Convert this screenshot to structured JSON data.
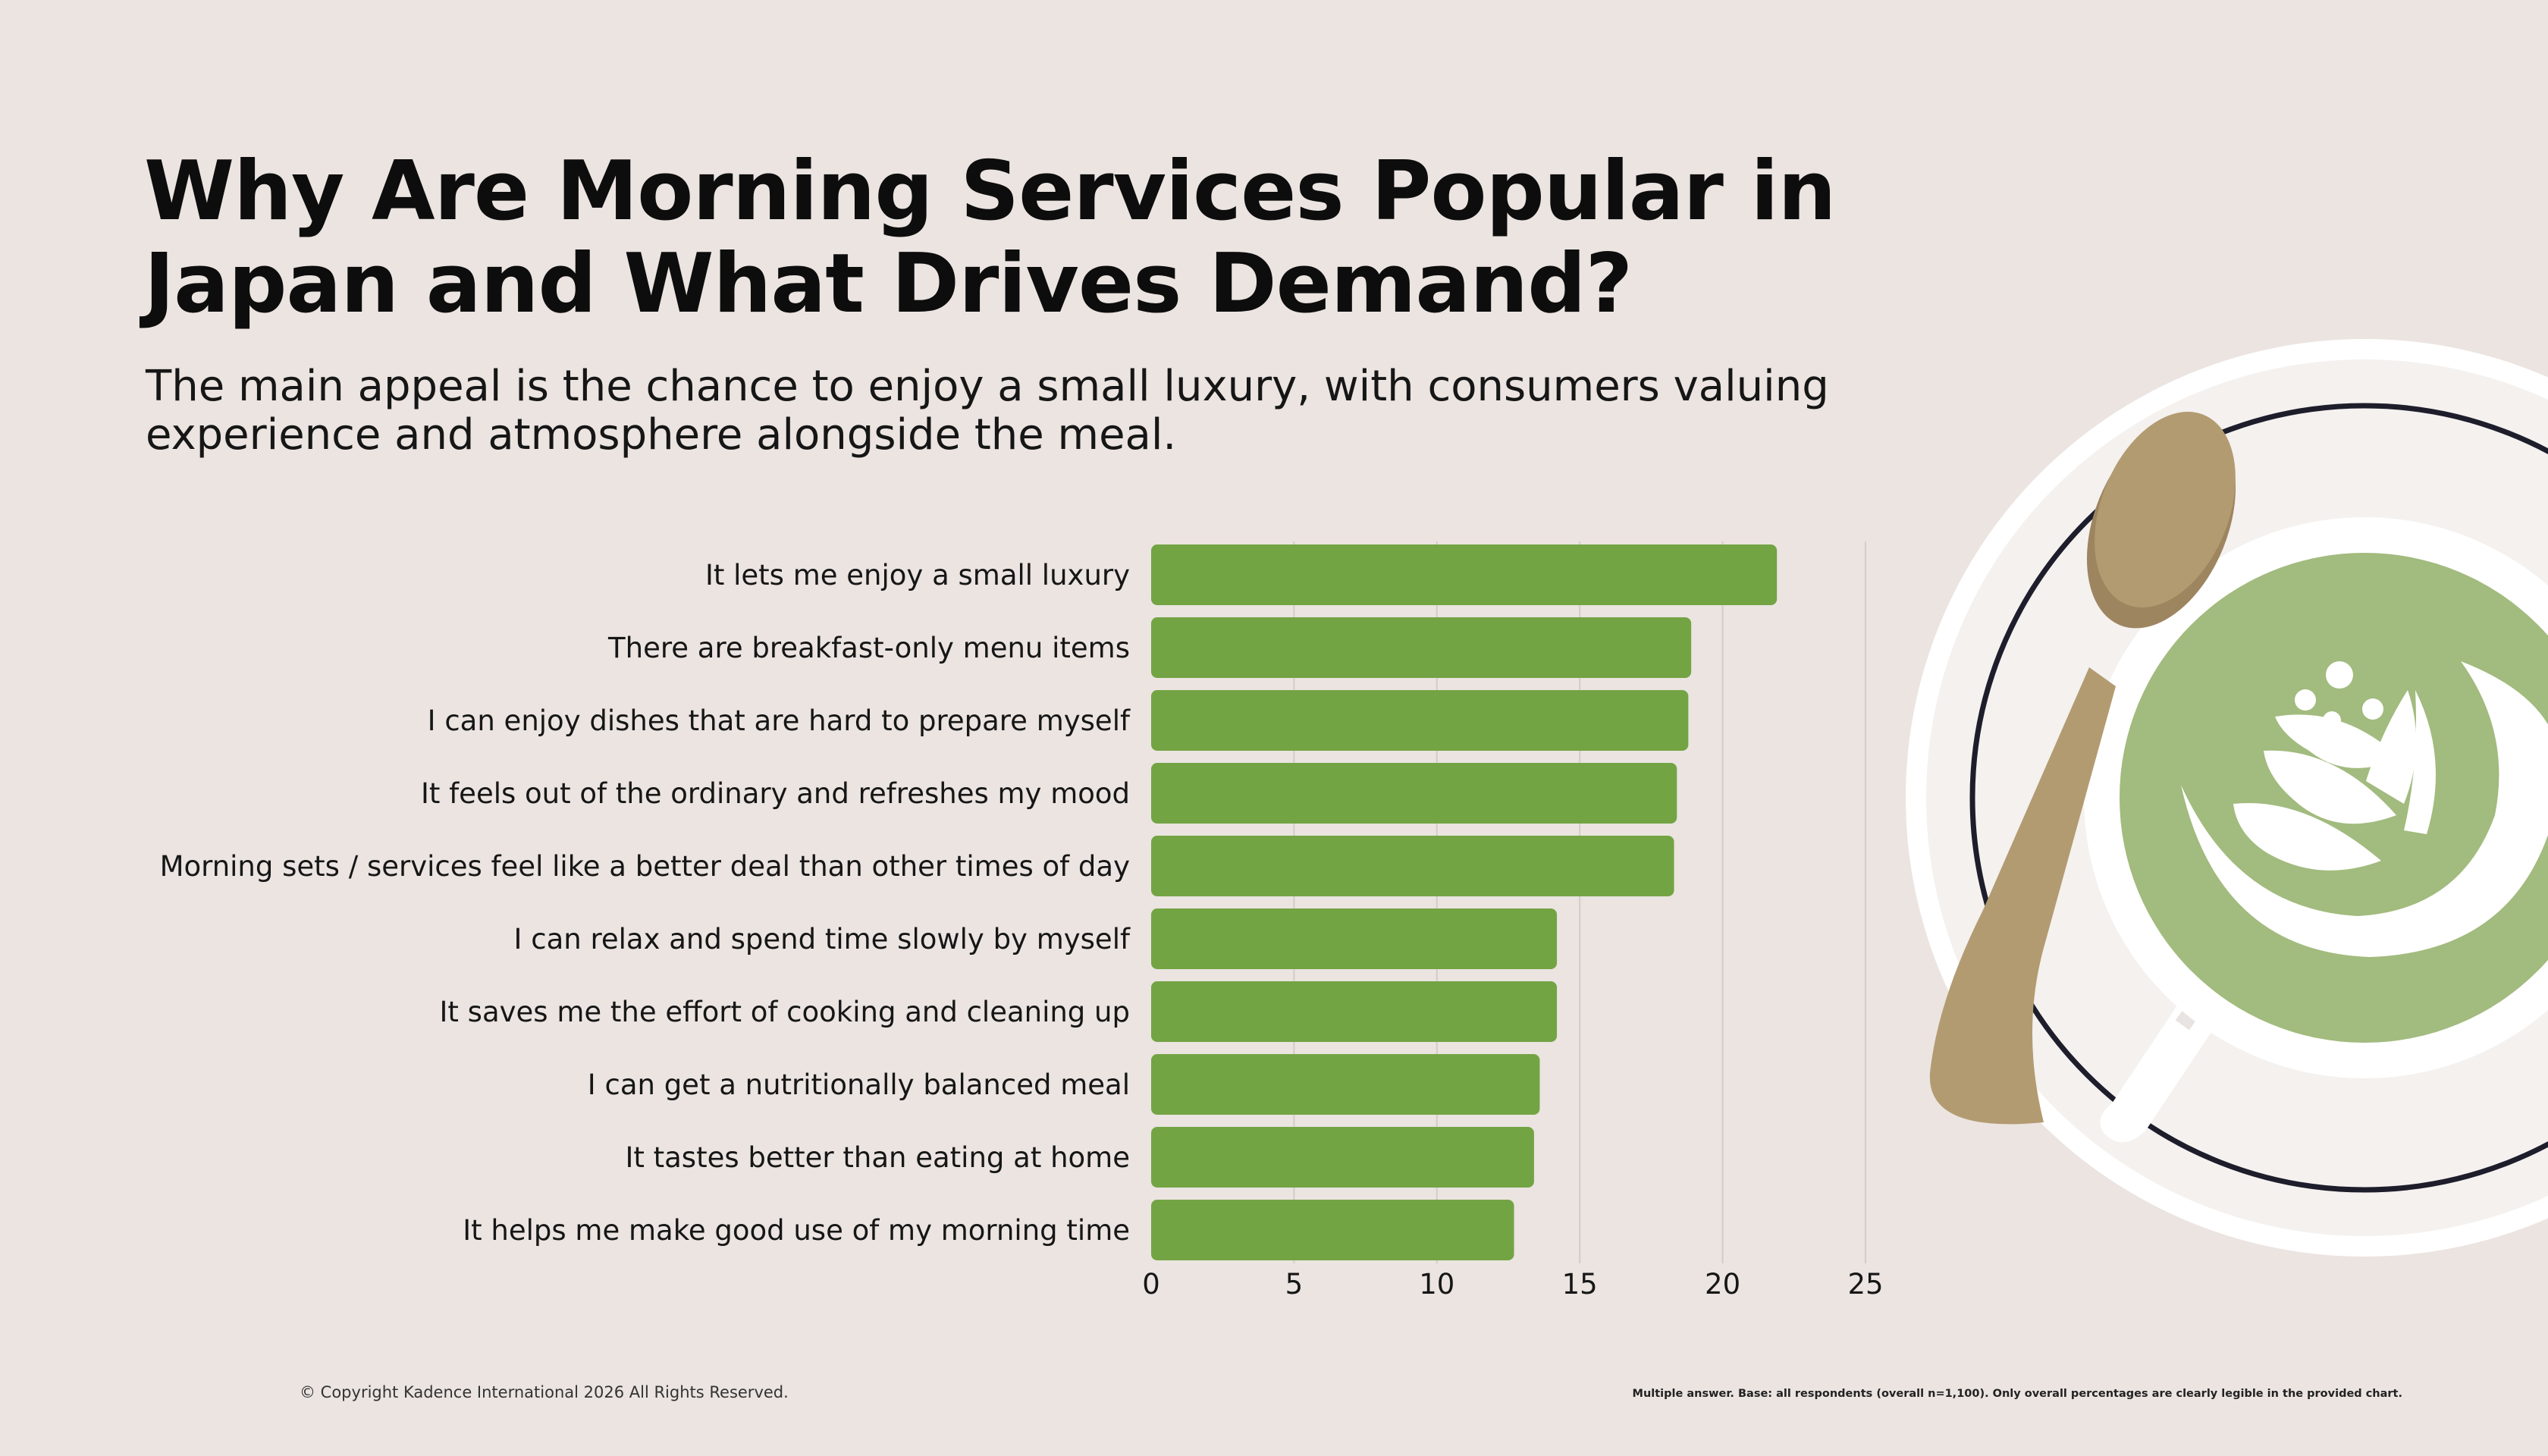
{
  "header": {
    "title": "Why Are Morning Services Popular in Japan and What Drives Demand?",
    "subtitle": "The main appeal is the chance to enjoy a small luxury, with consumers valuing experience and atmosphere alongside the meal."
  },
  "chart_data": {
    "type": "bar",
    "orientation": "horizontal",
    "categories": [
      "It lets me enjoy a small luxury",
      "There are breakfast-only menu items",
      "I can enjoy dishes that are hard to prepare myself",
      "It feels out of the ordinary and refreshes my mood",
      "Morning sets / services feel like a better deal than other times of day",
      "I can relax and spend time slowly by myself",
      "It saves me the effort of cooking and cleaning up",
      "I can get a nutritionally balanced meal",
      "It tastes better than eating at home",
      "It helps me make good use of my morning time"
    ],
    "values": [
      21.9,
      18.9,
      18.8,
      18.4,
      18.3,
      14.2,
      14.2,
      13.6,
      13.4,
      12.7
    ],
    "xlim": [
      0,
      25
    ],
    "xticks": [
      0,
      5,
      10,
      15,
      20,
      25
    ],
    "xlabel": "",
    "ylabel": "",
    "grid": true,
    "bar_color": "#73a444",
    "grid_color": "#d3ccc8"
  },
  "decoration": {
    "icon": "latte-cup-with-spoon-icon",
    "colors": {
      "saucer": "#ffffff",
      "saucer_inner": "#f4f1ef",
      "saucer_ring": "#1d1d2b",
      "latte": "#a2bb7e",
      "spoon": "#b39b71",
      "spoon_shadow": "#9d8560"
    }
  },
  "footer": {
    "copyright": "© Copyright Kadence International 2026 All Rights Reserved.",
    "note": "Multiple answer. Base: all respondents (overall n=1,100). Only overall percentages are clearly legible in the provided chart."
  }
}
